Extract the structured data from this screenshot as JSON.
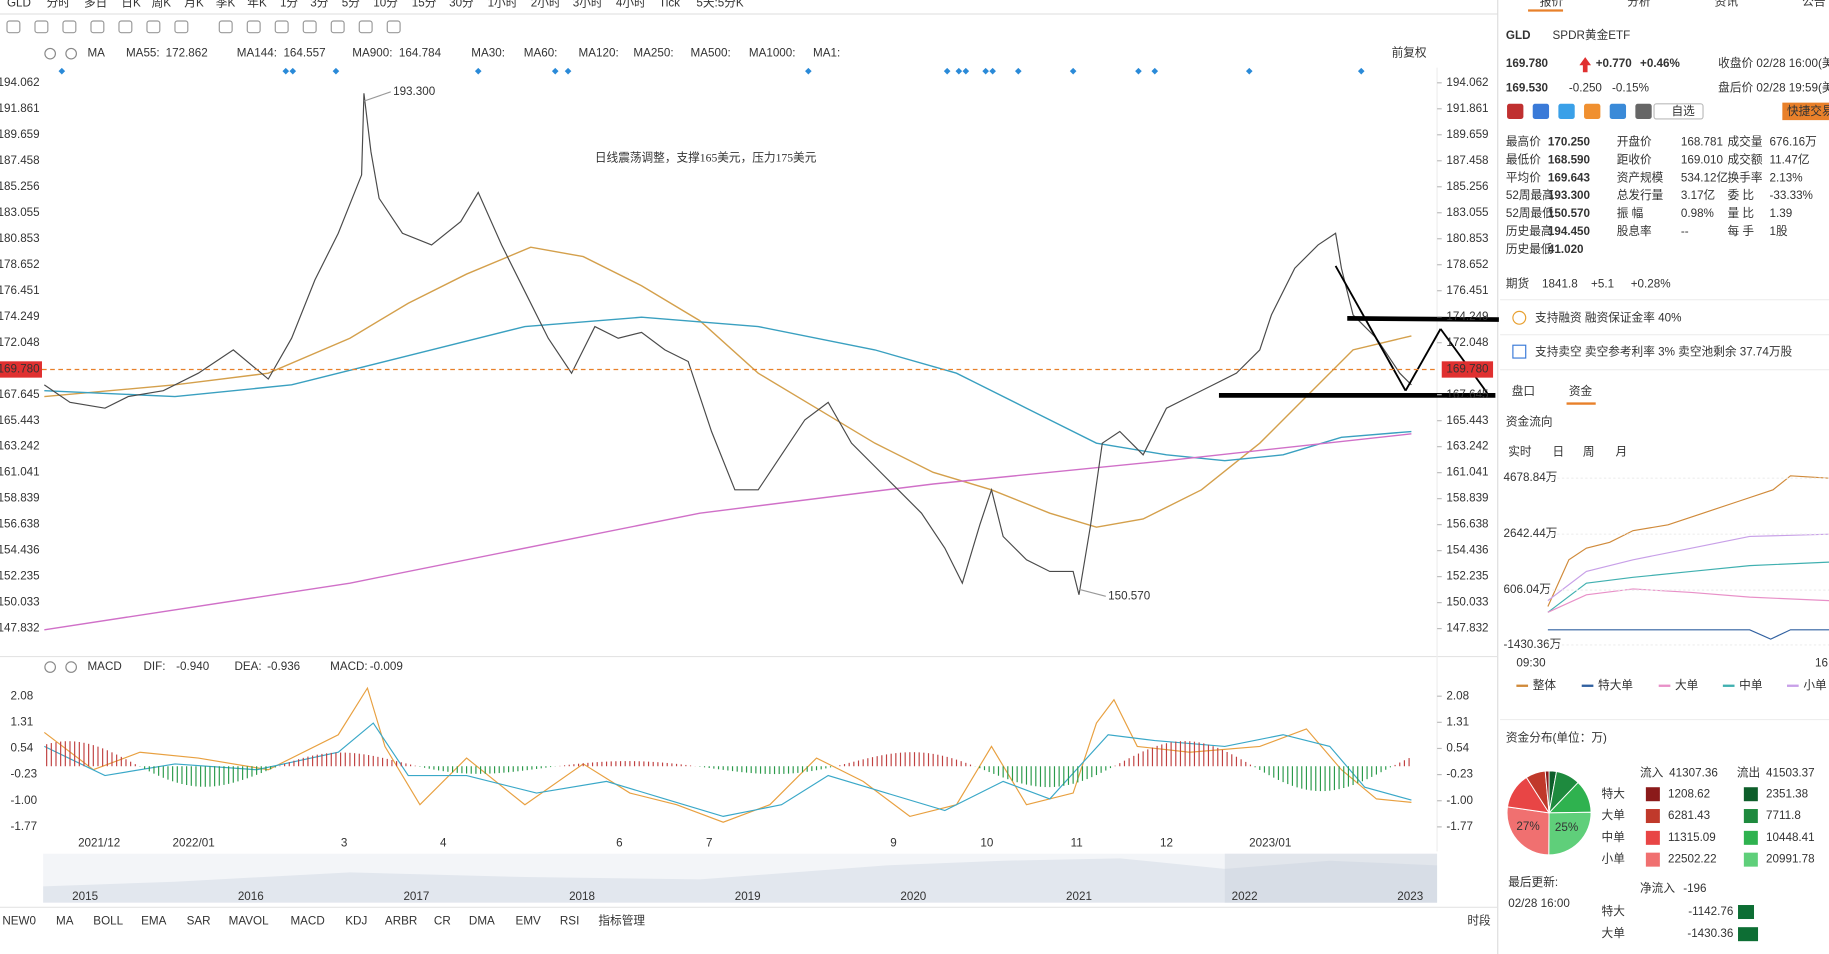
{
  "toolbar": {
    "symbol": "GLD",
    "periods": [
      "分时",
      "多日",
      "日K",
      "周K",
      "月K",
      "季K",
      "年K",
      "1分",
      "3分",
      "5分",
      "10分",
      "15分",
      "30分",
      "1小时",
      "2小时",
      "3小时",
      "4小时",
      "Tick",
      "5天:5分K"
    ]
  },
  "right_tabs": [
    "报价",
    "分析",
    "资讯",
    "公告"
  ],
  "ma_legend": {
    "label": "MA",
    "items": [
      {
        "name": "MA55:",
        "value": 172.862
      },
      {
        "name": "MA144:",
        "value": 164.557
      },
      {
        "name": "MA900:",
        "value": 164.784
      },
      {
        "name": "MA30:"
      },
      {
        "name": "MA60:"
      },
      {
        "name": "MA120:"
      },
      {
        "name": "MA250:"
      },
      {
        "name": "MA500:"
      },
      {
        "name": "MA1000:"
      },
      {
        "name": "MA1:"
      }
    ],
    "adjust": "前复权"
  },
  "price_chart": {
    "ylim": [
      145.757,
      195.346
    ],
    "yticks": [
      194.062,
      191.861,
      189.659,
      187.458,
      185.256,
      183.055,
      180.853,
      178.652,
      176.451,
      174.249,
      172.048,
      167.645,
      165.443,
      163.242,
      161.041,
      158.839,
      156.638,
      154.436,
      152.235,
      150.033,
      147.832
    ],
    "current": {
      "value": 169.78,
      "label": "169.780"
    },
    "high": {
      "value": 193.3,
      "label": "193.300"
    },
    "low": {
      "value": 150.57,
      "label": "150.570"
    },
    "annotation": "日线震荡调整，支撑165美元，压力175美元"
  },
  "macd": {
    "label": "MACD",
    "items": [
      {
        "name": "DIF:",
        "value": {
          "value": -0.94,
          "label": "-0.940"
        }
      },
      {
        "name": "DEA:",
        "value": -0.936
      },
      {
        "name": "MACD:",
        "value": -0.009
      }
    ],
    "ylim": [
      -1.976,
      2.49
    ],
    "yticks": [
      2.08,
      1.31,
      0.54,
      -0.23,
      {
        "value": -1,
        "label": "-1.00"
      },
      -1.77
    ]
  },
  "x_labels": [
    "2021/12",
    "2022/01",
    "3",
    "4",
    "6",
    "7",
    "9",
    "10",
    "11",
    "12",
    "2023/01"
  ],
  "overview_years": [
    "2015",
    "2016",
    "2017",
    "2018",
    "2019",
    "2020",
    "2021",
    "2022",
    "2023"
  ],
  "indicators": [
    "NEW0",
    "MA",
    "BOLL",
    "EMA",
    "SAR",
    "MAVOL",
    "MACD",
    "KDJ",
    "ARBR",
    "CR",
    "DMA",
    "EMV",
    "RSI",
    "指标管理"
  ],
  "session": "时段",
  "quote": {
    "symbol": "GLD",
    "name": "SPDR黄金ETF",
    "price": "169.780",
    "change": "+0.770",
    "change_pct": "+0.46%",
    "close_time": "收盘价 02/28 16:00(美",
    "after_price": "169.530",
    "after_change": "-0.250",
    "after_pct": "-0.15%",
    "after_time": "盘后价 02/28 19:59(美",
    "watch": "自选",
    "quick_trade": "快捷交易",
    "stats": [
      [
        "最高价",
        "170.250",
        "开盘价",
        "168.781",
        "成交量",
        "676.16万"
      ],
      [
        "最低价",
        "168.590",
        "距收价",
        "169.010",
        "成交额",
        "11.47亿"
      ],
      [
        "平均价",
        "169.643",
        "资产规模",
        "534.12亿",
        "换手率",
        "2.13%"
      ],
      [
        "52周最高",
        "193.300",
        "总发行量",
        "3.17亿",
        "委  比",
        "-33.33%"
      ],
      [
        "52周最低",
        "150.570",
        "振  幅",
        "0.98%",
        "量  比",
        "1.39"
      ],
      [
        "历史最高",
        "194.450",
        "股息率",
        "--",
        "每  手",
        "1股"
      ],
      [
        "历史最低",
        "41.020"
      ]
    ]
  },
  "futures": {
    "label": "期货",
    "price": "1841.8",
    "change": "+5.1",
    "pct": "+0.28%"
  },
  "margin": "支持融资 融资保证金率 40%",
  "short": "支持卖空 卖空参考利率 3% 卖空池剩余 37.74万股",
  "panel_tabs": [
    "盘口",
    "资金"
  ],
  "flow": {
    "title": "资金流向",
    "periods": [
      "实时",
      "日",
      "周",
      "月"
    ],
    "y_labels": [
      "4678.84万",
      "2642.44万",
      "606.04万",
      "-1430.36万"
    ],
    "x_labels": [
      "09:30",
      "16"
    ],
    "legend": [
      "整体",
      "特大单",
      "大单",
      "中单",
      "小单"
    ]
  },
  "distribution": {
    "title": "资金分布(单位：万)",
    "in_label": "流入",
    "in_total": 41307.36,
    "out_label": "流出",
    "out_total": 41503.37,
    "rows": [
      {
        "name": "特大",
        "in": 1208.62,
        "out": 2351.38
      },
      {
        "name": "大单",
        "in": 6281.43,
        "out": 7711.8
      },
      {
        "name": "中单",
        "in": 11315.09,
        "out": 10448.41
      },
      {
        "name": "小单",
        "in": 22502.22,
        "out": 20991.78
      }
    ],
    "pie_labels": [
      "27%",
      "25%"
    ]
  },
  "updated": {
    "label": "最后更新:",
    "time": "02/28 16:00"
  },
  "net": {
    "label": "净流入",
    "value": -196,
    "rows": [
      {
        "name": "特大",
        "value": -1142.76
      },
      {
        "name": "大单",
        "value": -1430.36
      }
    ]
  }
}
